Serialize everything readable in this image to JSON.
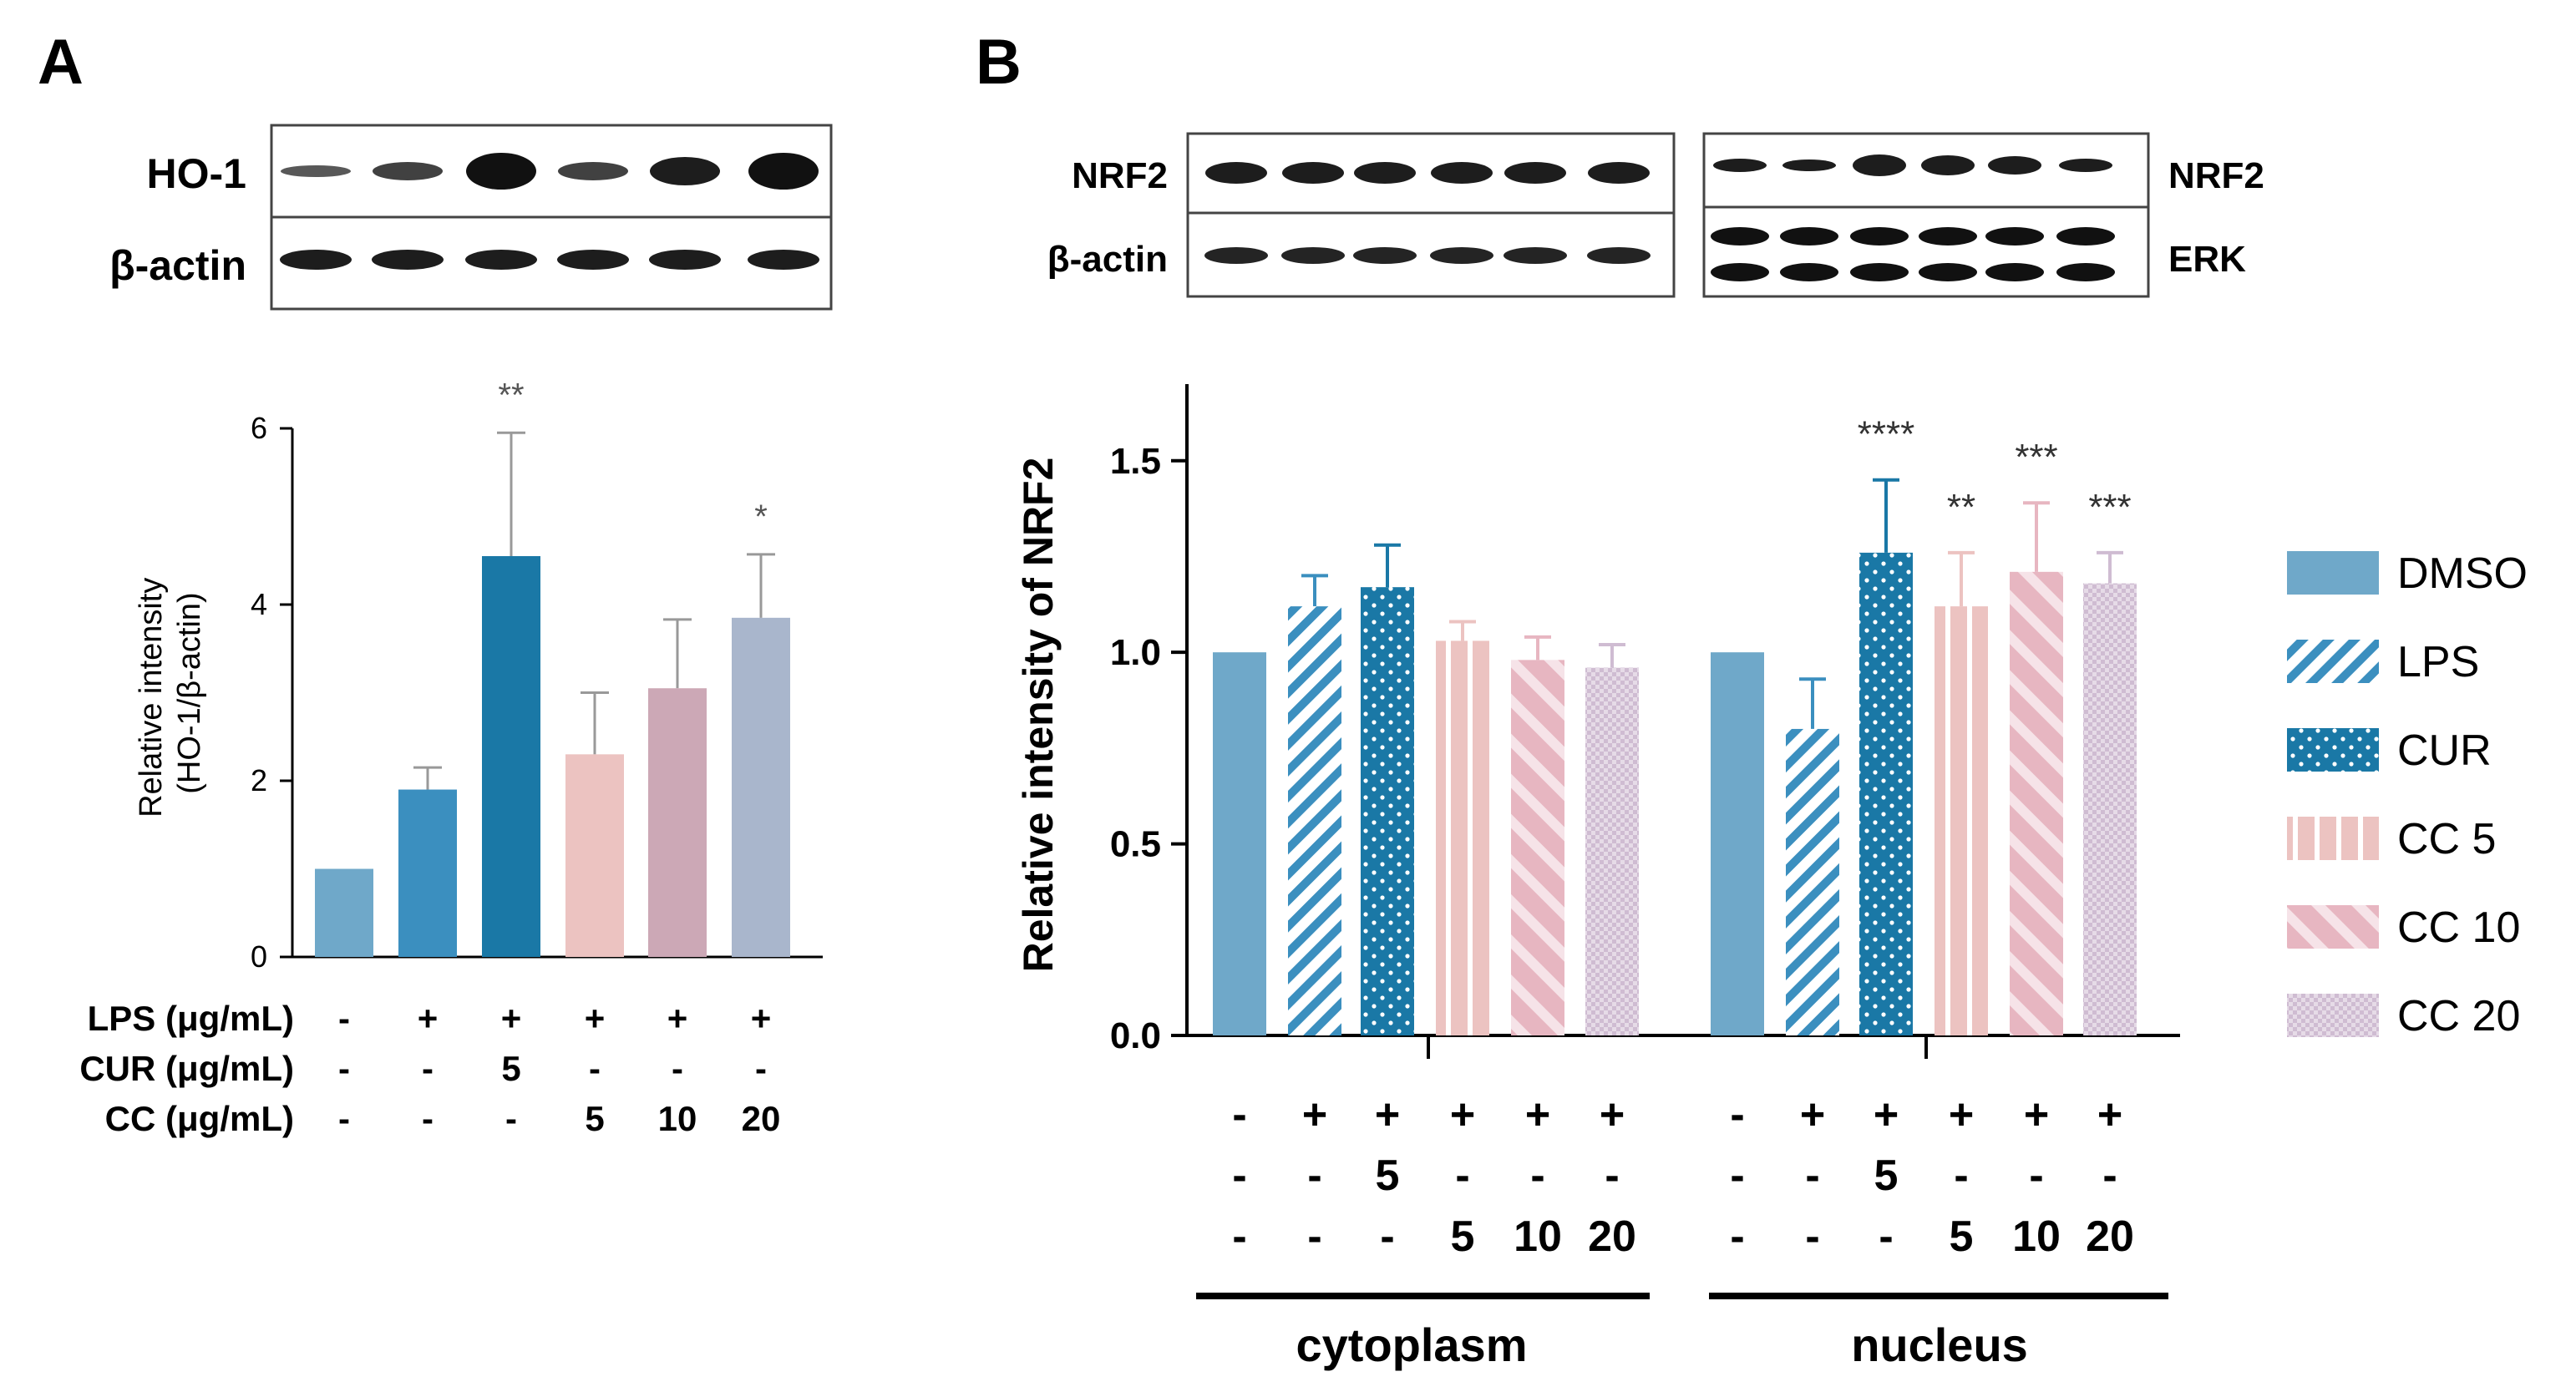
{
  "panel_labels": {
    "a": "A",
    "b": "B"
  },
  "colors": {
    "dmso": "#6fa8c9",
    "lps": "#3b8fbf",
    "cur": "#1a78a6",
    "cc5": "#ecc3c1",
    "cc10": "#cca8b6",
    "cc20": "#a9b6cc",
    "bc_cc10": "#e7b6c1",
    "bc_cc20": "#cfbcd2",
    "err_a": "#999999"
  },
  "blot_a": {
    "labels": [
      "HO-1",
      "β-actin"
    ]
  },
  "blot_b": {
    "left_labels": [
      "NRF2",
      "β-actin"
    ],
    "right_labels": [
      "NRF2",
      "ERK"
    ]
  },
  "panel_a_conditions": {
    "labels": [
      "LPS (μg/mL)",
      "CUR (μg/mL)",
      "CC (μg/mL)"
    ],
    "rows": [
      [
        "-",
        "+",
        "+",
        "+",
        "+",
        "+"
      ],
      [
        "-",
        "-",
        "5",
        "-",
        "-",
        "-"
      ],
      [
        "-",
        "-",
        "-",
        "5",
        "10",
        "20"
      ]
    ]
  },
  "panel_b_conditions": {
    "rows": [
      [
        "-",
        "+",
        "+",
        "+",
        "+",
        "+"
      ],
      [
        "-",
        "-",
        "5",
        "-",
        "-",
        "-"
      ],
      [
        "-",
        "-",
        "-",
        "5",
        "10",
        "20"
      ]
    ]
  },
  "legend": {
    "items": [
      {
        "name": "DMSO",
        "key": "dmso"
      },
      {
        "name": "LPS",
        "key": "lps"
      },
      {
        "name": "CUR",
        "key": "cur"
      },
      {
        "name": "CC 5",
        "key": "cc5"
      },
      {
        "name": "CC 10",
        "key": "cc10"
      },
      {
        "name": "CC 20",
        "key": "cc20"
      }
    ]
  },
  "chart_data": [
    {
      "id": "A",
      "type": "bar",
      "title": "",
      "xlabel": "",
      "ylabel": "Relative intensity\n(HO-1/β-actin)",
      "ylabel_lines": [
        "Relative intensity",
        "(HO-1/β-actin)"
      ],
      "ylim": [
        0,
        6
      ],
      "yticks": [
        "0",
        "2",
        "4",
        "6"
      ],
      "categories": [
        "DMSO",
        "LPS",
        "CUR",
        "CC 5",
        "CC 10",
        "CC 20"
      ],
      "values": [
        1.0,
        1.9,
        4.55,
        2.3,
        3.05,
        3.85
      ],
      "errors": [
        0,
        0.25,
        1.4,
        0.7,
        0.78,
        0.72
      ],
      "significance": [
        "",
        "",
        "**",
        "",
        "",
        "*"
      ]
    },
    {
      "id": "B",
      "type": "bar",
      "title": "",
      "xlabel": "",
      "ylabel": "Relative intensity of NRF2",
      "ylim": [
        0,
        1.7
      ],
      "yticks": [
        "0.0",
        "0.5",
        "1.0",
        "1.5"
      ],
      "categories": [
        "DMSO",
        "LPS",
        "CUR",
        "CC 5",
        "CC 10",
        "CC 20"
      ],
      "groups": [
        "cytoplasm",
        "nucleus"
      ],
      "series": [
        {
          "name": "cytoplasm",
          "values": [
            1.0,
            1.12,
            1.17,
            1.03,
            0.98,
            0.96
          ],
          "errors": [
            0,
            0.08,
            0.11,
            0.05,
            0.06,
            0.06
          ],
          "significance": [
            "",
            "",
            "",
            "",
            "",
            ""
          ]
        },
        {
          "name": "nucleus",
          "values": [
            1.0,
            0.8,
            1.26,
            1.12,
            1.21,
            1.18
          ],
          "errors": [
            0,
            0.13,
            0.19,
            0.14,
            0.18,
            0.08
          ],
          "significance": [
            "",
            "",
            "****",
            "**",
            "***",
            "***"
          ]
        }
      ]
    }
  ]
}
